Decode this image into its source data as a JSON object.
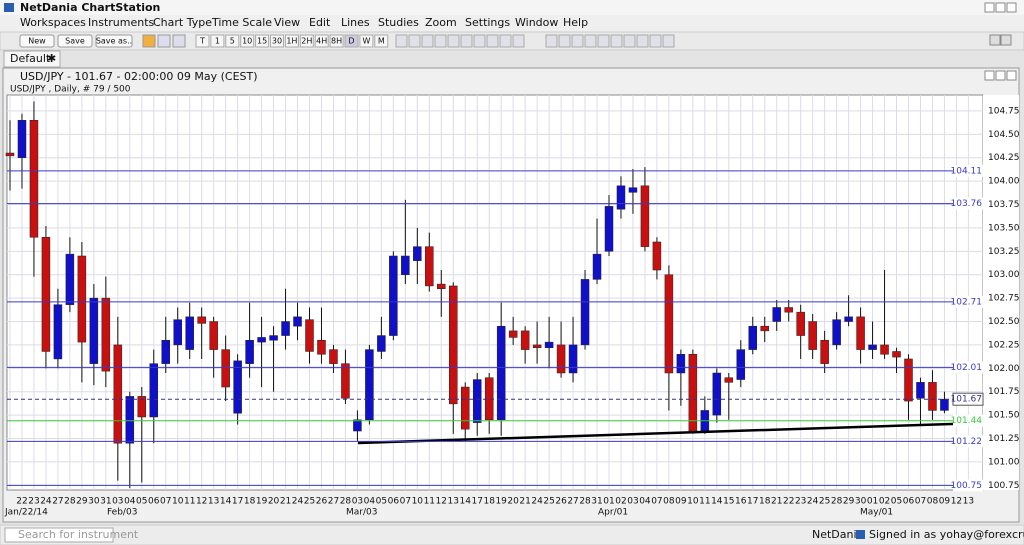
{
  "window": {
    "title": "NetDania ChartStation"
  },
  "menu": [
    "Workspaces",
    "Instruments",
    "Chart Type",
    "Time Scale",
    "View",
    "Edit",
    "Lines",
    "Studies",
    "Zoom",
    "Settings",
    "Window",
    "Help"
  ],
  "toolbar": {
    "buttons": [
      "New",
      "Save",
      "Save as.."
    ],
    "periods": [
      "T",
      "1",
      "5",
      "10",
      "15",
      "30",
      "1H",
      "2H",
      "4H",
      "8H",
      "D",
      "W",
      "M"
    ]
  },
  "tab": "Default",
  "chart_window": {
    "header": "USD/JPY - 101.67 - 02:00:00  09 May (CEST)",
    "subheader": "USD/JPY , Daily, # 79 / 500"
  },
  "status": {
    "search_placeholder": "Search for instrument",
    "brand": "NetDania",
    "signed_in": "Signed in as yohay@forexcrunch.com"
  },
  "chart_data": {
    "type": "candlestick",
    "categories": [
      null,
      "22",
      "23",
      "24",
      "27",
      "28",
      "29",
      "30",
      "31",
      "03",
      "04",
      "05",
      "06",
      "07",
      "10",
      "11",
      "12",
      "13",
      "14",
      "17",
      "18",
      "19",
      "20",
      "21",
      "24",
      "25",
      "26",
      "27",
      "28",
      "03",
      "04",
      "05",
      "06",
      "07",
      "10",
      "11",
      "12",
      "13",
      "14",
      "17",
      "18",
      "19",
      "20",
      "21",
      "24",
      "25",
      "26",
      "27",
      "28",
      "31",
      "01",
      "02",
      "03",
      "04",
      "07",
      "08",
      "09",
      "10",
      "11",
      "14",
      "15",
      "16",
      "17",
      "18",
      "21",
      "22",
      "23",
      "24",
      "25",
      "28",
      "29",
      "30",
      "01",
      "02",
      "05",
      "06",
      "07",
      "08",
      "09",
      "12",
      "13"
    ],
    "month_labels": [
      "Jan/22/14",
      "Feb/03",
      "Mar/03",
      "Apr/01",
      "May/01"
    ],
    "open": [
      104.3,
      104.25,
      104.65,
      103.4,
      102.1,
      102.68,
      103.2,
      102.05,
      102.75,
      102.25,
      101.2,
      101.7,
      101.48,
      102.05,
      102.25,
      102.2,
      102.55,
      102.5,
      102.2,
      101.52,
      102.05,
      102.28,
      102.3,
      102.35,
      102.45,
      102.52,
      102.3,
      102.2,
      102.05,
      101.33,
      101.45,
      102.18,
      102.35,
      103.0,
      103.15,
      103.3,
      102.9,
      102.88,
      101.8,
      101.42,
      101.9,
      101.45,
      102.4,
      102.4,
      102.25,
      102.22,
      102.25,
      101.95,
      102.25,
      102.95,
      103.25,
      103.7,
      103.88,
      103.95,
      103.35,
      103.0,
      101.95,
      102.15,
      101.33,
      101.5,
      101.9,
      101.88,
      102.2,
      102.45,
      102.5,
      102.65,
      102.6,
      102.5,
      102.3,
      102.25,
      102.5,
      102.55,
      102.2,
      102.25,
      102.18,
      102.1,
      101.68,
      101.85,
      101.55,
      null,
      null
    ],
    "high": [
      104.65,
      104.72,
      104.85,
      103.52,
      102.85,
      103.4,
      103.35,
      102.9,
      102.98,
      102.55,
      101.75,
      101.8,
      102.2,
      102.55,
      102.65,
      102.7,
      102.65,
      102.55,
      102.35,
      102.15,
      102.7,
      102.55,
      102.45,
      102.85,
      102.7,
      102.65,
      102.65,
      102.25,
      102.2,
      101.55,
      102.25,
      102.55,
      103.25,
      103.8,
      103.5,
      103.45,
      103.05,
      102.92,
      101.85,
      101.95,
      101.95,
      102.7,
      102.55,
      102.45,
      102.5,
      102.55,
      102.5,
      102.55,
      103.05,
      103.6,
      103.85,
      104.05,
      104.13,
      104.15,
      103.4,
      103.1,
      102.2,
      102.2,
      101.7,
      102.0,
      101.95,
      102.3,
      102.55,
      102.55,
      102.73,
      102.73,
      102.68,
      102.58,
      102.4,
      102.6,
      102.78,
      102.65,
      102.5,
      103.05,
      102.22,
      102.15,
      101.9,
      101.98,
      101.75,
      null,
      null
    ],
    "low": [
      103.9,
      103.92,
      102.98,
      102.0,
      102.0,
      102.6,
      101.85,
      101.82,
      101.8,
      100.8,
      100.72,
      100.78,
      101.2,
      101.95,
      102.05,
      102.1,
      102.1,
      101.9,
      101.65,
      101.4,
      101.9,
      101.8,
      101.75,
      102.2,
      102.3,
      102.05,
      102.05,
      101.95,
      101.62,
      101.22,
      101.4,
      102.1,
      102.3,
      102.9,
      102.9,
      102.82,
      102.55,
      101.3,
      101.22,
      101.28,
      101.3,
      101.28,
      102.25,
      102.05,
      102.05,
      102.0,
      101.9,
      101.85,
      102.2,
      102.9,
      103.2,
      103.6,
      103.65,
      103.25,
      102.95,
      101.55,
      101.6,
      101.3,
      101.3,
      101.42,
      101.45,
      101.8,
      102.15,
      102.28,
      102.4,
      102.5,
      102.1,
      102.1,
      101.95,
      102.2,
      102.45,
      102.05,
      102.1,
      102.1,
      101.95,
      101.45,
      101.4,
      101.45,
      101.52,
      null,
      null
    ],
    "close": [
      104.27,
      104.65,
      103.4,
      102.18,
      102.68,
      103.22,
      102.28,
      102.75,
      101.97,
      101.2,
      101.7,
      101.48,
      102.05,
      102.3,
      102.52,
      102.55,
      102.48,
      102.2,
      101.8,
      102.08,
      102.3,
      102.33,
      102.35,
      102.5,
      102.55,
      102.18,
      102.15,
      102.05,
      101.68,
      101.45,
      102.2,
      102.35,
      103.2,
      103.2,
      103.3,
      102.88,
      102.85,
      101.62,
      101.35,
      101.88,
      101.45,
      102.45,
      102.33,
      102.2,
      102.22,
      102.28,
      101.95,
      102.25,
      102.95,
      103.22,
      103.73,
      103.95,
      103.93,
      103.3,
      103.05,
      101.95,
      102.15,
      101.33,
      101.55,
      101.95,
      101.85,
      102.2,
      102.45,
      102.4,
      102.65,
      102.6,
      102.35,
      102.2,
      102.05,
      102.52,
      102.55,
      102.2,
      102.25,
      102.15,
      102.12,
      101.65,
      101.85,
      101.55,
      101.67,
      null,
      null
    ],
    "up_color": "#1010c8",
    "down_color": "#c81010",
    "levels": [
      {
        "value": 104.11,
        "color": "#3a3ac8"
      },
      {
        "value": 103.76,
        "color": "#3a3ac8"
      },
      {
        "value": 102.71,
        "color": "#3a3ac8"
      },
      {
        "value": 102.01,
        "color": "#3a3ac8"
      },
      {
        "value": 101.67,
        "color": "#30308a",
        "dashed": true
      },
      {
        "value": 101.44,
        "color": "#38c838"
      },
      {
        "value": 101.22,
        "color": "#3a3ac8"
      },
      {
        "value": 100.75,
        "color": "#3a3ac8"
      }
    ],
    "ylim": [
      100.7,
      104.92
    ],
    "yticks": [
      104.75,
      {
        "value": 104.5,
        "label": "104.50"
      },
      104.25,
      {
        "value": 104,
        "label": "104.00"
      },
      103.75,
      {
        "value": 103.5,
        "label": "103.50"
      },
      103.25,
      {
        "value": 103,
        "label": "103.00"
      },
      102.75,
      {
        "value": 102.5,
        "label": "102.50"
      },
      102.25,
      {
        "value": 102,
        "label": "102.00"
      },
      101.75,
      {
        "value": 101.5,
        "label": "101.50"
      },
      101.25,
      {
        "value": 101,
        "label": "101.00"
      },
      100.75
    ],
    "grid": true
  }
}
